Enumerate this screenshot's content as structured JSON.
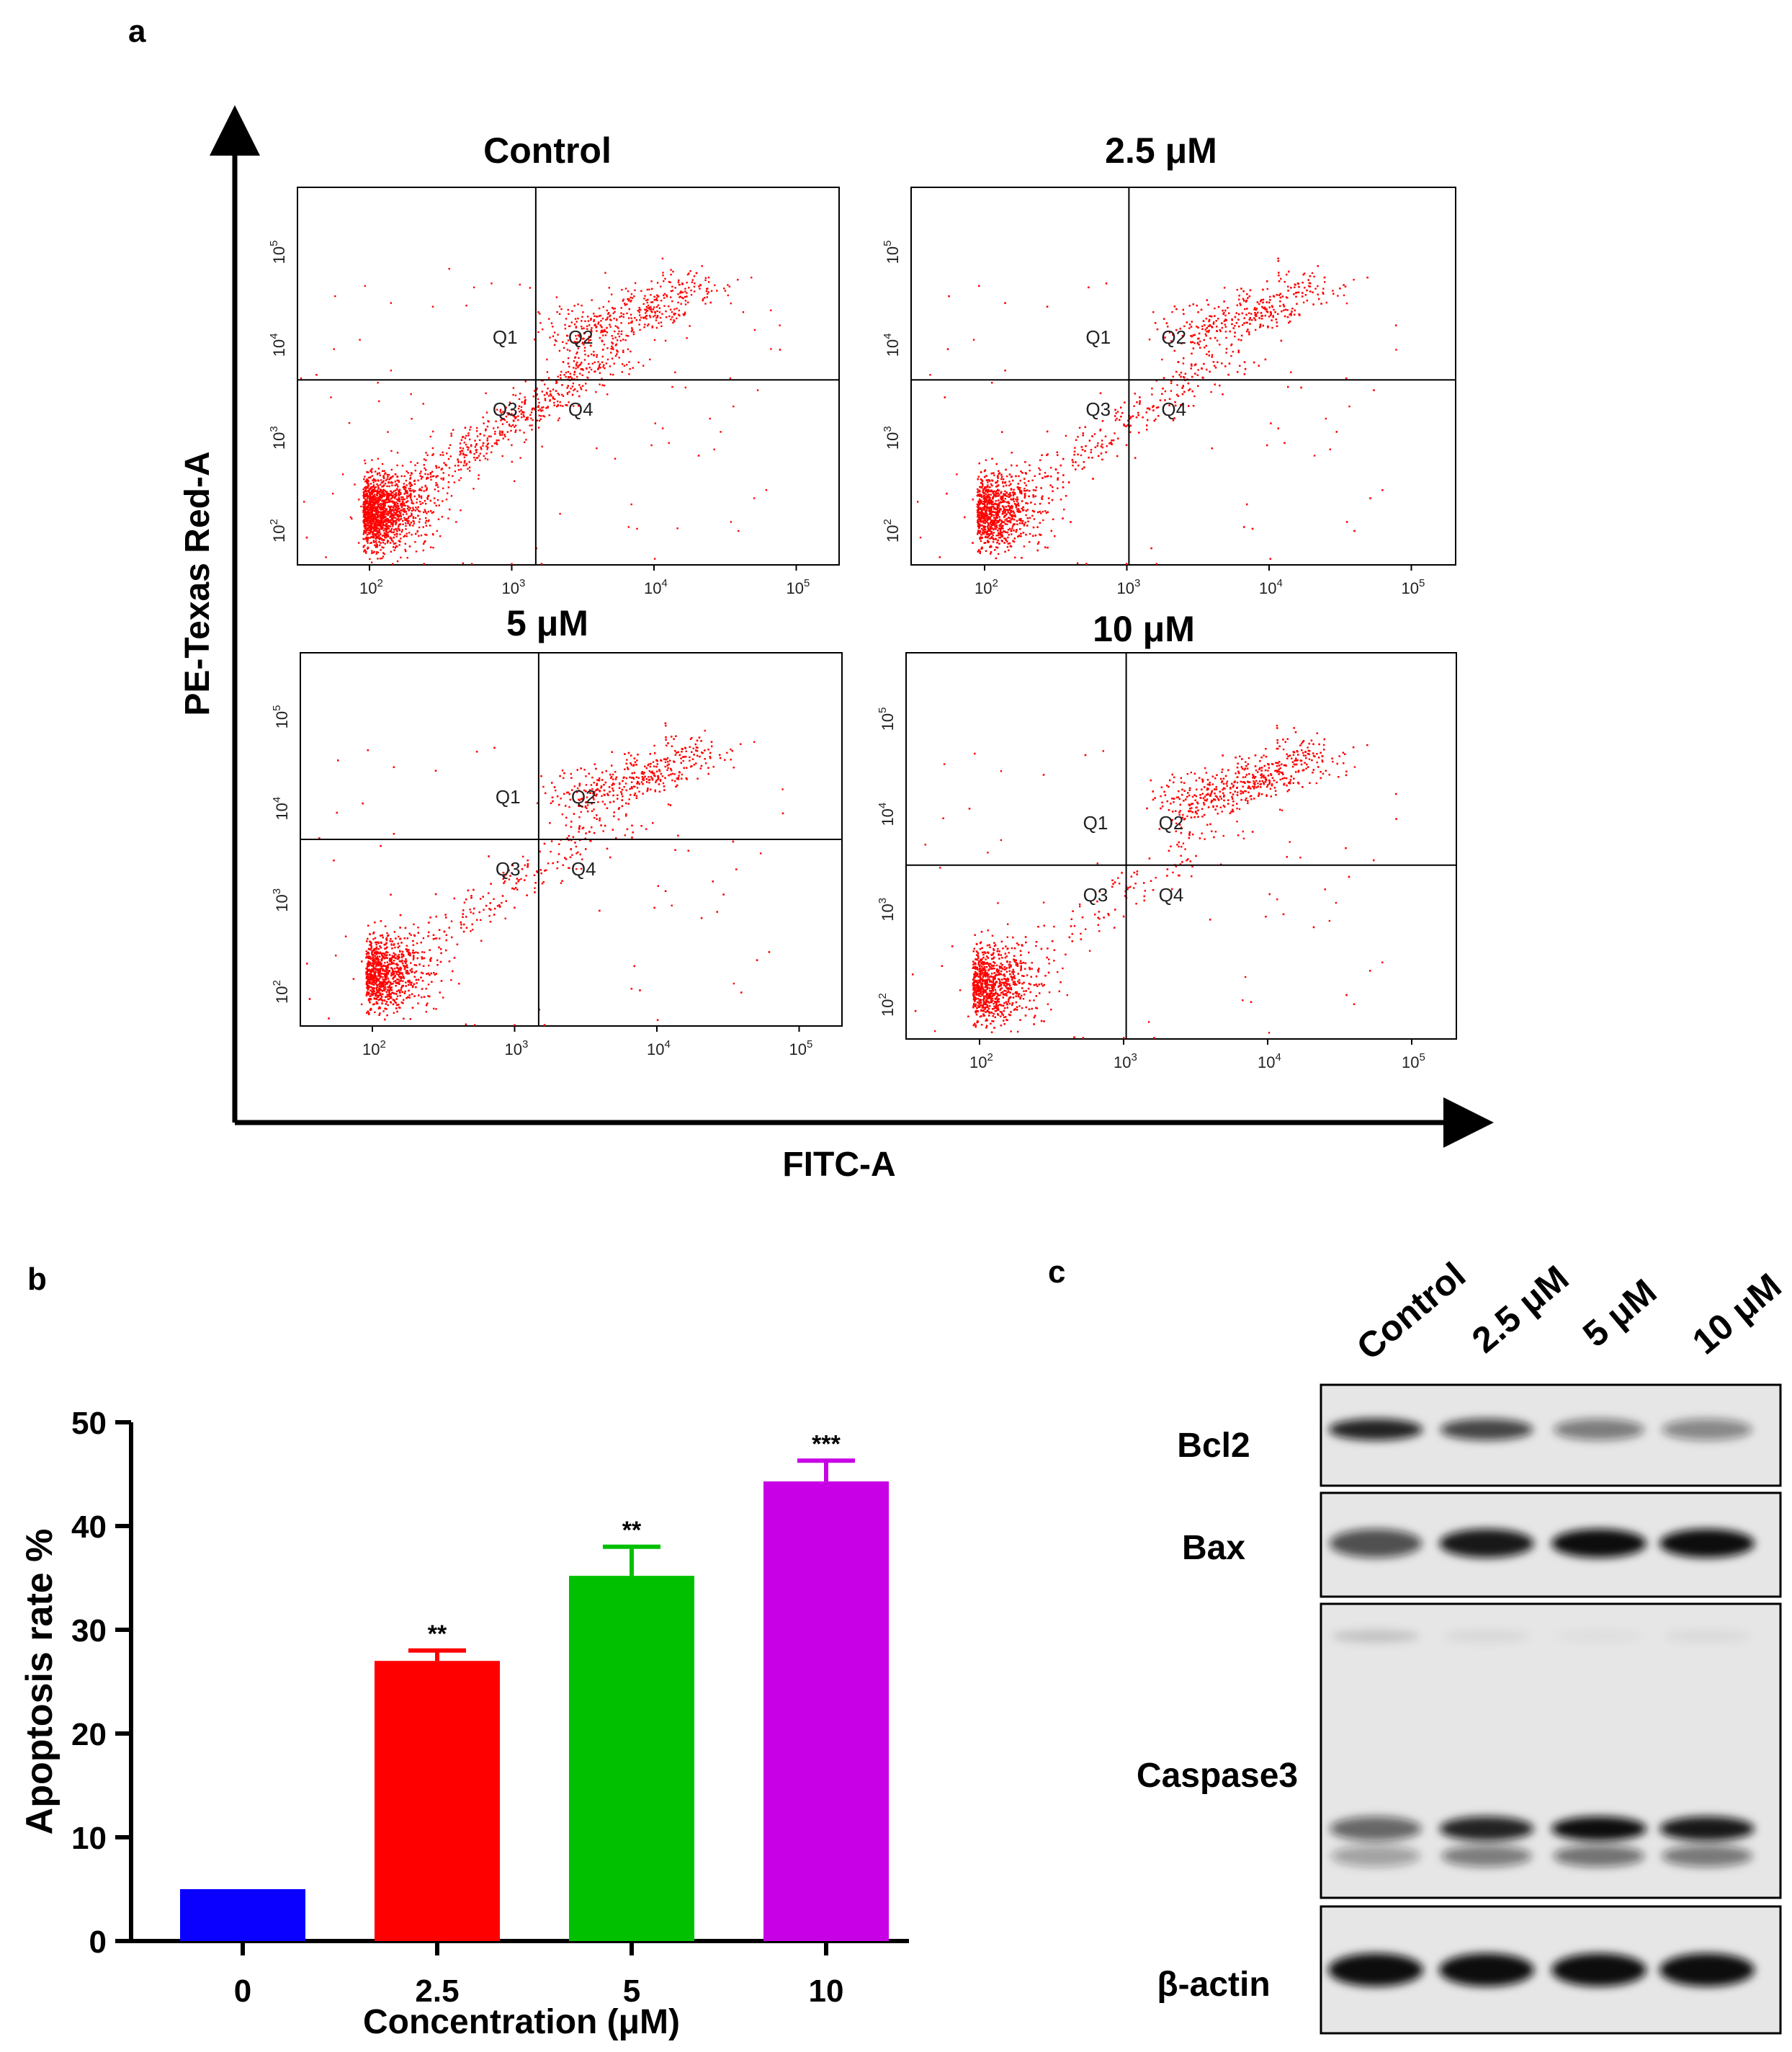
{
  "panel_labels": {
    "a": "a",
    "b": "b",
    "c": "c"
  },
  "flow": {
    "y_axis_label": "PE-Texas Red-A",
    "x_axis_label": "FITC-A",
    "tick_base": "10",
    "tick_exponents": [
      "2",
      "3",
      "4",
      "5"
    ],
    "quadrant_labels": [
      "Q1",
      "Q2",
      "Q3",
      "Q4"
    ],
    "dot_color": "#ff0000",
    "plots": [
      {
        "title": "Control",
        "q2": 0.12
      },
      {
        "title": "2.5 μM",
        "q2": 0.18
      },
      {
        "title": "5 μM",
        "q2": 0.22
      },
      {
        "title": "10 μM",
        "q2": 0.3
      }
    ]
  },
  "chart_data": {
    "type": "bar",
    "title": "",
    "xlabel": "Concentration (μM)",
    "ylabel": "Apoptosis rate %",
    "categories": [
      "0",
      "2.5",
      "5",
      "10"
    ],
    "values": [
      5.0,
      27.0,
      35.2,
      44.3
    ],
    "errors": [
      0,
      1.0,
      2.8,
      2.0
    ],
    "significance": [
      "",
      "**",
      "**",
      "***"
    ],
    "colors": [
      "#0a00ff",
      "#ff0000",
      "#00c000",
      "#c800e6"
    ],
    "ylim": [
      0,
      50
    ],
    "yticks": [
      "0",
      "10",
      "20",
      "30",
      "40",
      "50"
    ]
  },
  "western": {
    "lanes": [
      "Control",
      "2.5 μM",
      "5 μM",
      "10 μM"
    ],
    "proteins": [
      {
        "name": "Bcl2",
        "intensity": [
          0.9,
          0.75,
          0.5,
          0.45
        ]
      },
      {
        "name": "Bax",
        "intensity": [
          0.7,
          0.95,
          1.0,
          1.0
        ]
      },
      {
        "name": "Caspase3",
        "intensity": [
          0.6,
          0.9,
          1.0,
          0.95
        ]
      },
      {
        "name": "β-actin",
        "intensity": [
          1.0,
          1.0,
          1.0,
          1.0
        ]
      }
    ]
  }
}
